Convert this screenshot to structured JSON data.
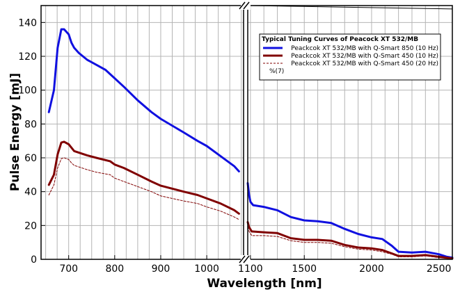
{
  "chart_data": {
    "type": "line",
    "title": "",
    "xlabel": "Wavelength [nm]",
    "ylabel": "Pulse Energy [mJ]",
    "ylim": [
      0,
      150
    ],
    "y_ticks": [
      0,
      20,
      40,
      60,
      80,
      100,
      120,
      140
    ],
    "grid": true,
    "x_axis_break": true,
    "panels": [
      {
        "name": "left",
        "xlim": [
          640,
          1080
        ],
        "x_ticks": [
          700,
          800,
          900,
          1000
        ]
      },
      {
        "name": "right",
        "xlim": [
          1080,
          2600
        ],
        "x_ticks": [
          1100,
          1500,
          2000,
          2500
        ]
      }
    ],
    "legend": {
      "placement": "upper-right of left-to-right split",
      "title": "Typical Tuning Curves of Peacock XT 532/MB",
      "extra_entry": "%(7)"
    },
    "series": [
      {
        "name": "Peackcok XT 532/MB with Q-Smart 850 (10 Hz)",
        "color": "#1010e0",
        "style": "solid",
        "width": 3,
        "segments": [
          [
            [
              657,
              87
            ],
            [
              668,
              100
            ],
            [
              676,
              125
            ],
            [
              684,
              136
            ],
            [
              690,
              136
            ],
            [
              700,
              133
            ],
            [
              706,
              128
            ],
            [
              712,
              125
            ],
            [
              722,
              122
            ],
            [
              740,
              118
            ],
            [
              760,
              115
            ],
            [
              780,
              112
            ],
            [
              800,
              107
            ],
            [
              820,
              102
            ],
            [
              850,
              94
            ],
            [
              880,
              87
            ],
            [
              900,
              83
            ],
            [
              950,
              75
            ],
            [
              980,
              70
            ],
            [
              1000,
              67
            ],
            [
              1030,
              61
            ],
            [
              1060,
              55
            ],
            [
              1070,
              52
            ]
          ],
          [
            [
              1080,
              45
            ],
            [
              1090,
              38
            ],
            [
              1100,
              34
            ],
            [
              1120,
              32
            ],
            [
              1200,
              31
            ],
            [
              1300,
              29
            ],
            [
              1400,
              25
            ],
            [
              1500,
              23
            ],
            [
              1600,
              22.5
            ],
            [
              1700,
              21.5
            ],
            [
              1800,
              18
            ],
            [
              1900,
              15
            ],
            [
              2000,
              13
            ],
            [
              2080,
              12
            ],
            [
              2150,
              8
            ],
            [
              2200,
              4.5
            ],
            [
              2300,
              4
            ],
            [
              2400,
              4.5
            ],
            [
              2500,
              3
            ],
            [
              2560,
              1.5
            ],
            [
              2600,
              1
            ]
          ]
        ]
      },
      {
        "name": "Peackcok XT 532/MB with Q-Smart 450 (10 Hz)",
        "color": "#800000",
        "style": "solid",
        "width": 3,
        "segments": [
          [
            [
              657,
              44
            ],
            [
              668,
              50
            ],
            [
              676,
              62
            ],
            [
              684,
              69
            ],
            [
              690,
              69.5
            ],
            [
              700,
              68
            ],
            [
              706,
              66
            ],
            [
              712,
              64
            ],
            [
              740,
              61.5
            ],
            [
              760,
              60
            ],
            [
              790,
              58
            ],
            [
              800,
              56
            ],
            [
              820,
              54
            ],
            [
              850,
              50
            ],
            [
              880,
              46
            ],
            [
              900,
              43.5
            ],
            [
              950,
              40
            ],
            [
              980,
              38
            ],
            [
              1000,
              36
            ],
            [
              1030,
              33
            ],
            [
              1060,
              29
            ],
            [
              1070,
              27
            ]
          ],
          [
            [
              1080,
              22
            ],
            [
              1090,
              19
            ],
            [
              1110,
              16.5
            ],
            [
              1200,
              16
            ],
            [
              1300,
              15.5
            ],
            [
              1400,
              12.5
            ],
            [
              1500,
              11.5
            ],
            [
              1600,
              11.5
            ],
            [
              1700,
              11
            ],
            [
              1800,
              8.5
            ],
            [
              1900,
              7
            ],
            [
              2000,
              6.5
            ],
            [
              2080,
              5.5
            ],
            [
              2150,
              3.5
            ],
            [
              2200,
              2
            ],
            [
              2300,
              2
            ],
            [
              2400,
              2.5
            ],
            [
              2500,
              1.5
            ],
            [
              2600,
              0.5
            ]
          ]
        ]
      },
      {
        "name": "Peackcok XT 532/MB with Q-Smart 450 (20 Hz)",
        "color": "#800000",
        "style": "dashed",
        "width": 1,
        "segments": [
          [
            [
              657,
              38
            ],
            [
              668,
              44
            ],
            [
              676,
              54
            ],
            [
              684,
              59.5
            ],
            [
              690,
              60
            ],
            [
              700,
              59
            ],
            [
              706,
              57
            ],
            [
              712,
              55.5
            ],
            [
              740,
              53
            ],
            [
              760,
              51.5
            ],
            [
              790,
              50
            ],
            [
              800,
              48
            ],
            [
              820,
              46
            ],
            [
              850,
              43
            ],
            [
              880,
              40
            ],
            [
              900,
              37.5
            ],
            [
              950,
              34.5
            ],
            [
              980,
              33
            ],
            [
              1000,
              31
            ],
            [
              1030,
              28.5
            ],
            [
              1060,
              25
            ],
            [
              1070,
              23.5
            ]
          ],
          [
            [
              1080,
              19
            ],
            [
              1090,
              16.5
            ],
            [
              1110,
              14
            ],
            [
              1200,
              14
            ],
            [
              1300,
              13.5
            ],
            [
              1400,
              11
            ],
            [
              1500,
              10
            ],
            [
              1600,
              10
            ],
            [
              1700,
              9.5
            ],
            [
              1800,
              7.5
            ],
            [
              1900,
              6
            ],
            [
              2000,
              5.5
            ],
            [
              2080,
              4.5
            ],
            [
              2150,
              3
            ],
            [
              2200,
              1.5
            ],
            [
              2300,
              1.5
            ],
            [
              2400,
              2
            ],
            [
              2500,
              1
            ],
            [
              2600,
              0.5
            ]
          ]
        ]
      }
    ],
    "annotation_line": {
      "description": "thin black line across top right panel",
      "points": [
        [
          1080,
          150
        ],
        [
          2600,
          148
        ]
      ]
    }
  }
}
